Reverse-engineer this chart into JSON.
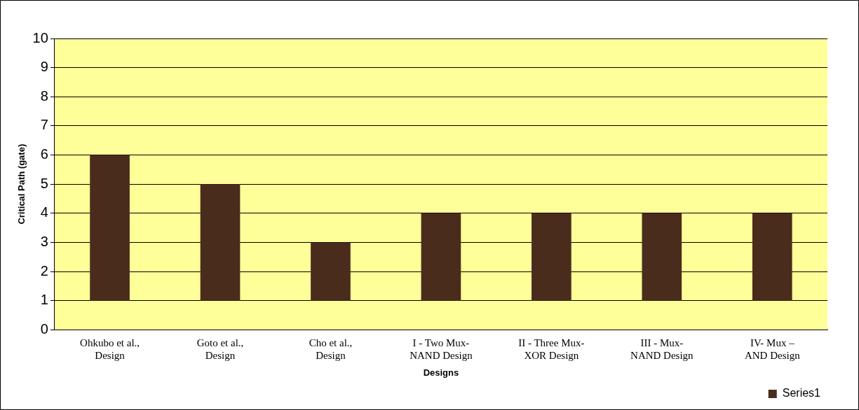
{
  "chart_data": {
    "type": "bar",
    "xlabel": "Designs",
    "ylabel": "Critical Path (gate)",
    "categories": [
      "Ohkubo et al.,\nDesign",
      "Goto et al.,\nDesign",
      "Cho et al.,\nDesign",
      "I - Two Mux-\nNAND Design",
      "II - Three Mux-\nXOR Design",
      "III - Mux-\nNAND Design",
      "IV- Mux –\nAND Design"
    ],
    "series": [
      {
        "name": "Series1",
        "color": "#4a2c1c",
        "values": [
          5,
          4,
          2,
          3,
          3,
          3,
          3
        ],
        "base": [
          1,
          1,
          1,
          1,
          1,
          1,
          1
        ]
      }
    ],
    "ylim": [
      0,
      10
    ],
    "yticks": [
      0,
      1,
      2,
      3,
      4,
      5,
      6,
      7,
      8,
      9,
      10
    ],
    "grid": "y",
    "legend": "bottom right"
  }
}
